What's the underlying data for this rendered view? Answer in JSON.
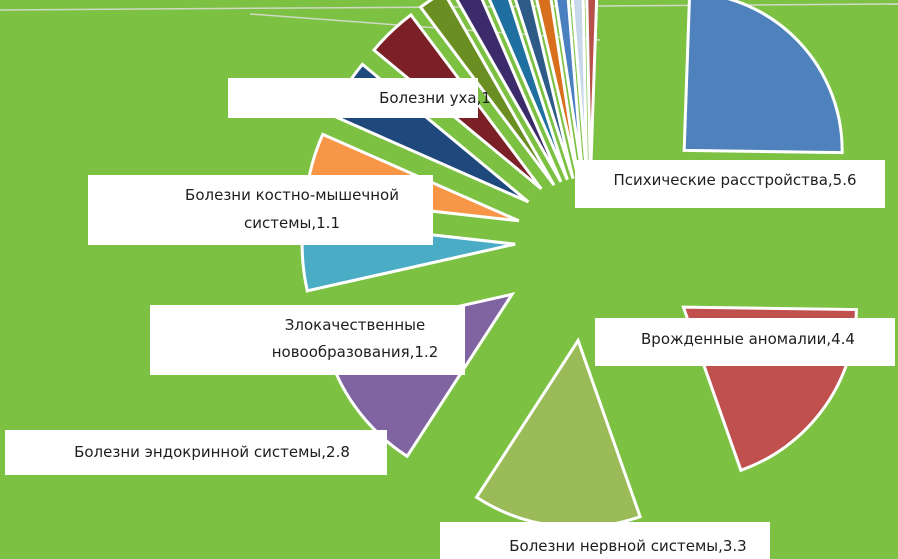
{
  "chart_data": {
    "type": "pie",
    "title": "",
    "colors": {
      "background": "#7cc142",
      "label_box": "#ffffff",
      "label_text": "#1e1e1e",
      "slice_border": "#ffffff"
    },
    "slices": [
      {
        "label": "Психические расстройства,5.6",
        "value": 5.6,
        "color": "#4f81bd"
      },
      {
        "label": "Врожденные аномалии,4.4",
        "value": 4.4,
        "color": "#c0504d"
      },
      {
        "label": "Болезни нервной системы,3.3",
        "value": 3.3,
        "color": "#9bbb59"
      },
      {
        "label": "Болезни эндокринной системы,2.8",
        "value": 2.8,
        "color": "#8064a2"
      },
      {
        "label": "Злокачественные новообразования,1.2",
        "value": 1.2,
        "color": "#4bacc6"
      },
      {
        "label": "Болезни костно-мышечной системы,1.1",
        "value": 1.1,
        "color": "#f79646"
      },
      {
        "label": "Болезни уха,1",
        "value": 1.0,
        "color": "#1f497d"
      },
      {
        "label": "",
        "value": 0.85,
        "color": "#7a2026"
      },
      {
        "label": "",
        "value": 0.45,
        "color": "#6b8e23"
      },
      {
        "label": "",
        "value": 0.4,
        "color": "#3b2b6b"
      },
      {
        "label": "",
        "value": 0.35,
        "color": "#1f6fa0"
      },
      {
        "label": "",
        "value": 0.3,
        "color": "#2e5a88"
      },
      {
        "label": "",
        "value": 0.28,
        "color": "#d86f1c"
      },
      {
        "label": "",
        "value": 0.25,
        "color": "#4a7fc0"
      },
      {
        "label": "",
        "value": 0.22,
        "color": "#c9d7ea"
      },
      {
        "label": "",
        "value": 0.2,
        "color": "#b8504a"
      }
    ]
  }
}
